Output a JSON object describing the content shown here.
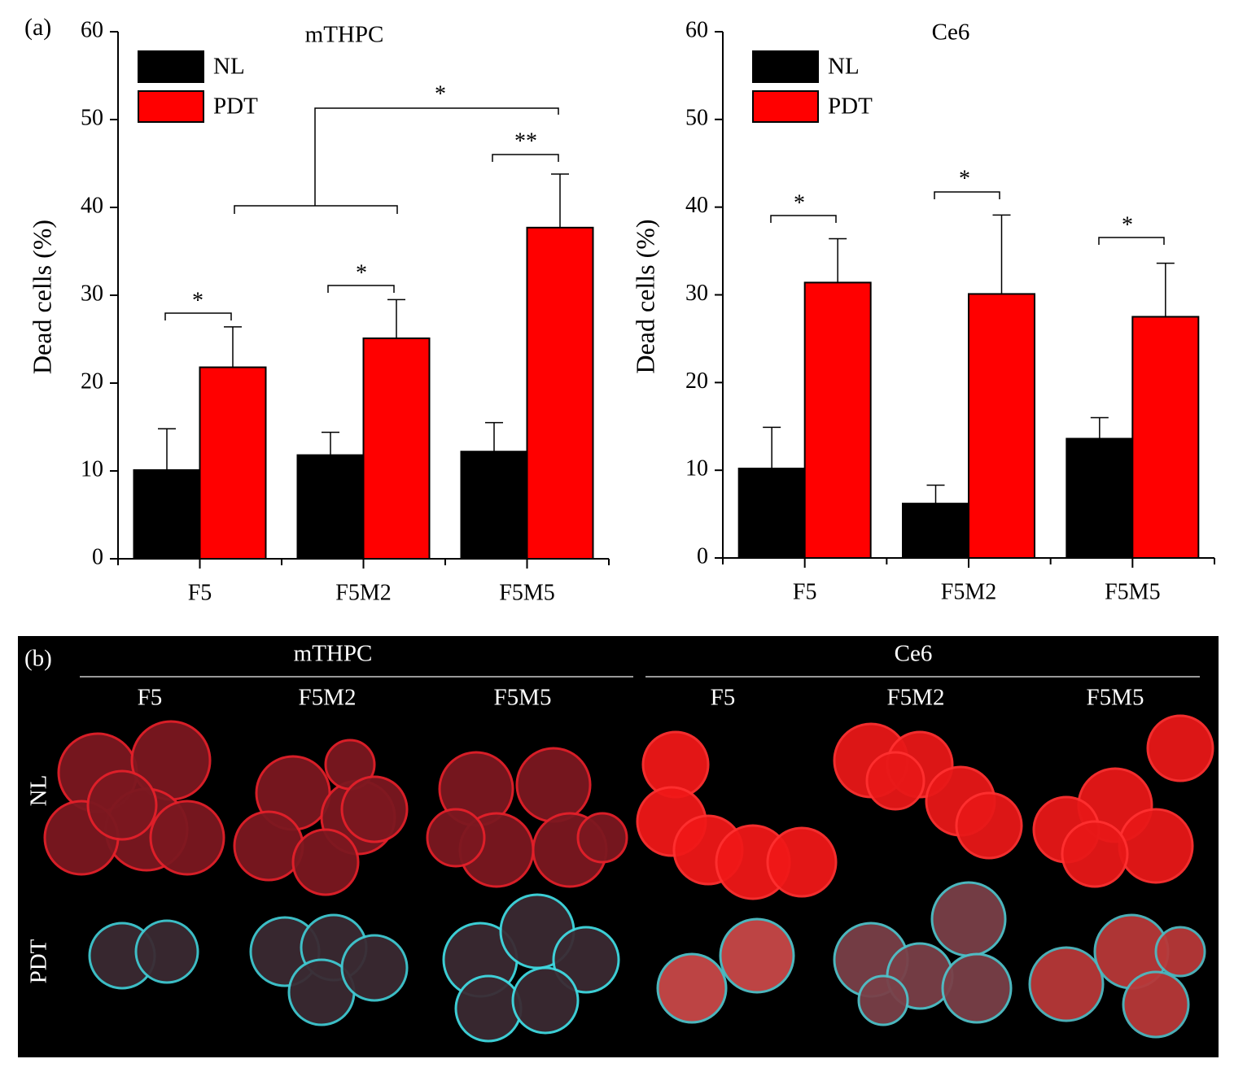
{
  "panel_a_label": "(a)",
  "chart_data": [
    {
      "type": "bar",
      "title": "mTHPC",
      "y_label": "Dead cells (%)",
      "categories": [
        "F5",
        "F5M2",
        "F5M5"
      ],
      "series": [
        {
          "name": "NL",
          "color": "#000000",
          "values": [
            10.1,
            11.8,
            12.2
          ],
          "errors": [
            4.7,
            2.6,
            3.3
          ]
        },
        {
          "name": "PDT",
          "color": "#ff0000",
          "values": [
            21.8,
            25.1,
            37.7
          ],
          "errors": [
            4.6,
            4.4,
            6.1
          ]
        }
      ],
      "annotations": [
        "*",
        "*",
        "**",
        "*"
      ],
      "ylim": [
        0,
        60
      ],
      "yticks": [
        0,
        10,
        20,
        30,
        40,
        50,
        60
      ],
      "grid": false,
      "legend": "top-left"
    },
    {
      "type": "bar",
      "title": "Ce6",
      "y_label": "Dead cells (%)",
      "categories": [
        "F5",
        "F5M2",
        "F5M5"
      ],
      "series": [
        {
          "name": "NL",
          "color": "#000000",
          "values": [
            10.2,
            6.2,
            13.6
          ],
          "errors": [
            4.7,
            2.1,
            2.4
          ]
        },
        {
          "name": "PDT",
          "color": "#ff0000",
          "values": [
            31.4,
            30.1,
            27.5
          ],
          "errors": [
            5.0,
            9.0,
            6.1
          ]
        }
      ],
      "annotations": [
        "*",
        "*",
        "*"
      ],
      "ylim": [
        0,
        60
      ],
      "yticks": [
        0,
        10,
        20,
        30,
        40,
        50,
        60
      ],
      "grid": false,
      "legend": "top-left"
    }
  ],
  "panel_b": {
    "label": "(b)",
    "groups": [
      "mTHPC",
      "Ce6"
    ],
    "columns": [
      "F5",
      "F5M2",
      "F5M5",
      "F5",
      "F5M2",
      "F5M5"
    ],
    "rows": [
      "NL",
      "PDT"
    ]
  }
}
